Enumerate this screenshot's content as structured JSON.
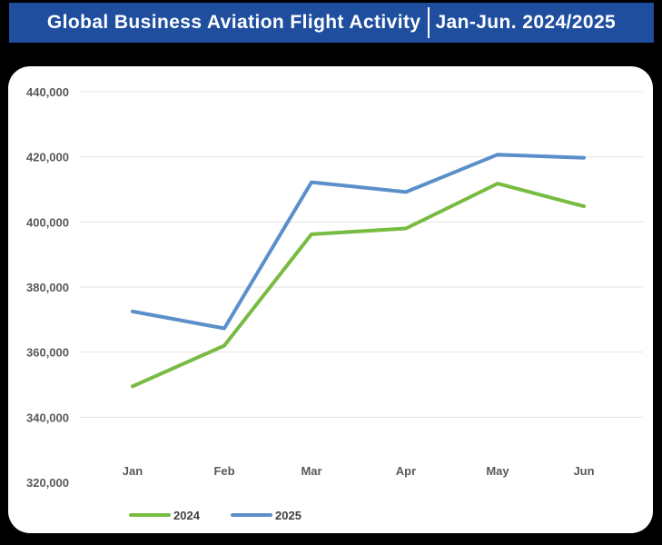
{
  "header": {
    "title": "Global Business Aviation Flight Activity",
    "period": "Jan-Jun. 2024/2025"
  },
  "chart_data": {
    "type": "line",
    "categories": [
      "Jan",
      "Feb",
      "Mar",
      "Apr",
      "May",
      "Jun"
    ],
    "series": [
      {
        "name": "2024",
        "values": [
          349500,
          362000,
          396200,
          398000,
          411800,
          404800
        ],
        "color": "#77bb41"
      },
      {
        "name": "2025",
        "values": [
          372500,
          367300,
          412200,
          409200,
          420700,
          419700
        ],
        "color": "#5b8fc9"
      }
    ],
    "ylim": [
      320000,
      440000
    ],
    "yticks": [
      "320,000",
      "340,000",
      "360,000",
      "380,000",
      "400,000",
      "420,000",
      "440,000"
    ],
    "grid": true,
    "legend": "bottom-left"
  }
}
